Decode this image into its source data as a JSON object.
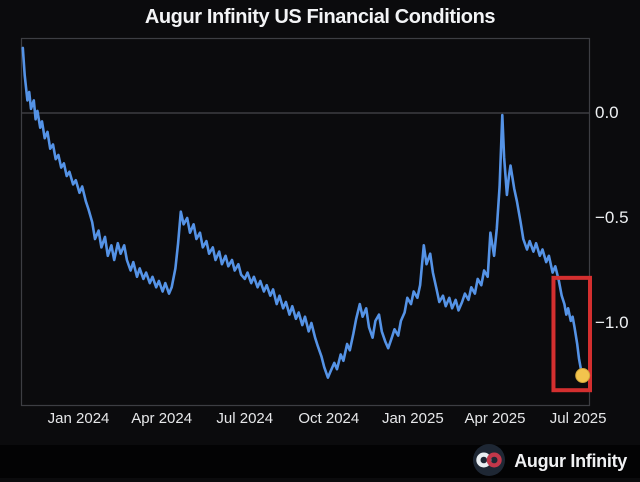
{
  "title": "Augur Infinity US Financial Conditions",
  "branding": {
    "logo_text": "Augur Infinity",
    "logo_icon": "infinity-icon",
    "logo_circle_color": "#1e2734",
    "logo_left_loop_color": "#e9eef2",
    "logo_right_loop_color": "#c2374a"
  },
  "colors": {
    "background": "#0b0b0d",
    "footer_background": "#030304",
    "plot_border": "#3d3e43",
    "zero_gridline": "#46474c",
    "line": "#5593e6",
    "text": "#eceded",
    "highlight_box": "#d42f2f",
    "end_dot": "#f3c44d"
  },
  "chart_data": {
    "type": "line",
    "title": "Augur Infinity US Financial Conditions",
    "xlabel": "",
    "ylabel": "",
    "legend": "none",
    "grid": "single horizontal gridline at 0.0 only",
    "x_range": [
      "2023-10-30",
      "2025-07-14"
    ],
    "ylim": [
      -1.395,
      0.357
    ],
    "y_ticks": [
      {
        "label": "0.0",
        "value": 0.0
      },
      {
        "label": "−0.5",
        "value": -0.5
      },
      {
        "label": "−1.0",
        "value": -1.0
      }
    ],
    "x_ticks": [
      {
        "label": "Jan 2024",
        "date": "2024-01-01"
      },
      {
        "label": "Apr 2024",
        "date": "2024-04-01"
      },
      {
        "label": "Jul 2024",
        "date": "2024-07-01"
      },
      {
        "label": "Oct 2024",
        "date": "2024-10-01"
      },
      {
        "label": "Jan 2025",
        "date": "2025-01-01"
      },
      {
        "label": "Apr 2025",
        "date": "2025-04-01"
      },
      {
        "label": "Jul 2025",
        "date": "2025-07-01"
      }
    ],
    "highlight_box": {
      "x1": "2025-06-04",
      "x2": "2025-07-14",
      "v1": -0.785,
      "v2": -1.32,
      "color": "#d42f2f"
    },
    "end_dot": {
      "date": "2025-07-06",
      "value": -1.25,
      "color": "#f3c44d"
    },
    "series": [
      {
        "name": "US Financial Conditions",
        "color": "#5593e6",
        "points": [
          [
            "2023-11-01",
            0.31
          ],
          [
            "2023-11-03",
            0.18
          ],
          [
            "2023-11-06",
            0.06
          ],
          [
            "2023-11-08",
            0.1
          ],
          [
            "2023-11-10",
            0.02
          ],
          [
            "2023-11-13",
            0.06
          ],
          [
            "2023-11-15",
            -0.03
          ],
          [
            "2023-11-17",
            0.01
          ],
          [
            "2023-11-20",
            -0.07
          ],
          [
            "2023-11-22",
            -0.04
          ],
          [
            "2023-11-25",
            -0.12
          ],
          [
            "2023-11-28",
            -0.09
          ],
          [
            "2023-12-01",
            -0.17
          ],
          [
            "2023-12-04",
            -0.15
          ],
          [
            "2023-12-07",
            -0.22
          ],
          [
            "2023-12-10",
            -0.2
          ],
          [
            "2023-12-13",
            -0.26
          ],
          [
            "2023-12-16",
            -0.24
          ],
          [
            "2023-12-19",
            -0.3
          ],
          [
            "2023-12-22",
            -0.28
          ],
          [
            "2023-12-26",
            -0.34
          ],
          [
            "2023-12-29",
            -0.32
          ],
          [
            "2024-01-02",
            -0.38
          ],
          [
            "2024-01-05",
            -0.35
          ],
          [
            "2024-01-09",
            -0.42
          ],
          [
            "2024-01-12",
            -0.46
          ],
          [
            "2024-01-16",
            -0.52
          ],
          [
            "2024-01-19",
            -0.6
          ],
          [
            "2024-01-23",
            -0.56
          ],
          [
            "2024-01-26",
            -0.64
          ],
          [
            "2024-01-30",
            -0.59
          ],
          [
            "2024-02-02",
            -0.68
          ],
          [
            "2024-02-06",
            -0.63
          ],
          [
            "2024-02-09",
            -0.7
          ],
          [
            "2024-02-13",
            -0.62
          ],
          [
            "2024-02-16",
            -0.67
          ],
          [
            "2024-02-20",
            -0.63
          ],
          [
            "2024-02-23",
            -0.7
          ],
          [
            "2024-02-27",
            -0.75
          ],
          [
            "2024-03-01",
            -0.71
          ],
          [
            "2024-03-05",
            -0.78
          ],
          [
            "2024-03-08",
            -0.74
          ],
          [
            "2024-03-12",
            -0.79
          ],
          [
            "2024-03-15",
            -0.76
          ],
          [
            "2024-03-19",
            -0.81
          ],
          [
            "2024-03-22",
            -0.78
          ],
          [
            "2024-03-26",
            -0.83
          ],
          [
            "2024-03-29",
            -0.8
          ],
          [
            "2024-04-02",
            -0.85
          ],
          [
            "2024-04-05",
            -0.81
          ],
          [
            "2024-04-09",
            -0.86
          ],
          [
            "2024-04-12",
            -0.83
          ],
          [
            "2024-04-16",
            -0.74
          ],
          [
            "2024-04-19",
            -0.62
          ],
          [
            "2024-04-22",
            -0.47
          ],
          [
            "2024-04-25",
            -0.53
          ],
          [
            "2024-04-29",
            -0.5
          ],
          [
            "2024-05-02",
            -0.57
          ],
          [
            "2024-05-06",
            -0.53
          ],
          [
            "2024-05-09",
            -0.6
          ],
          [
            "2024-05-13",
            -0.57
          ],
          [
            "2024-05-16",
            -0.64
          ],
          [
            "2024-05-20",
            -0.61
          ],
          [
            "2024-05-23",
            -0.67
          ],
          [
            "2024-05-27",
            -0.64
          ],
          [
            "2024-05-30",
            -0.7
          ],
          [
            "2024-06-03",
            -0.66
          ],
          [
            "2024-06-06",
            -0.72
          ],
          [
            "2024-06-10",
            -0.68
          ],
          [
            "2024-06-13",
            -0.73
          ],
          [
            "2024-06-17",
            -0.7
          ],
          [
            "2024-06-20",
            -0.75
          ],
          [
            "2024-06-24",
            -0.72
          ],
          [
            "2024-06-27",
            -0.77
          ],
          [
            "2024-07-01",
            -0.79
          ],
          [
            "2024-07-04",
            -0.76
          ],
          [
            "2024-07-08",
            -0.81
          ],
          [
            "2024-07-11",
            -0.78
          ],
          [
            "2024-07-15",
            -0.83
          ],
          [
            "2024-07-18",
            -0.8
          ],
          [
            "2024-07-22",
            -0.85
          ],
          [
            "2024-07-25",
            -0.82
          ],
          [
            "2024-07-29",
            -0.87
          ],
          [
            "2024-08-01",
            -0.84
          ],
          [
            "2024-08-05",
            -0.91
          ],
          [
            "2024-08-08",
            -0.87
          ],
          [
            "2024-08-12",
            -0.93
          ],
          [
            "2024-08-15",
            -0.9
          ],
          [
            "2024-08-19",
            -0.96
          ],
          [
            "2024-08-22",
            -0.92
          ],
          [
            "2024-08-26",
            -0.98
          ],
          [
            "2024-08-29",
            -0.95
          ],
          [
            "2024-09-02",
            -1.01
          ],
          [
            "2024-09-05",
            -0.97
          ],
          [
            "2024-09-09",
            -1.04
          ],
          [
            "2024-09-12",
            -1.0
          ],
          [
            "2024-09-16",
            -1.07
          ],
          [
            "2024-09-19",
            -1.11
          ],
          [
            "2024-09-23",
            -1.16
          ],
          [
            "2024-09-26",
            -1.21
          ],
          [
            "2024-09-30",
            -1.26
          ],
          [
            "2024-10-03",
            -1.23
          ],
          [
            "2024-10-07",
            -1.19
          ],
          [
            "2024-10-10",
            -1.22
          ],
          [
            "2024-10-14",
            -1.15
          ],
          [
            "2024-10-17",
            -1.18
          ],
          [
            "2024-10-21",
            -1.1
          ],
          [
            "2024-10-24",
            -1.13
          ],
          [
            "2024-10-28",
            -1.05
          ],
          [
            "2024-10-31",
            -0.98
          ],
          [
            "2024-11-04",
            -0.91
          ],
          [
            "2024-11-07",
            -0.97
          ],
          [
            "2024-11-11",
            -0.93
          ],
          [
            "2024-11-14",
            -1.02
          ],
          [
            "2024-11-18",
            -1.07
          ],
          [
            "2024-11-21",
            -0.99
          ],
          [
            "2024-11-25",
            -0.96
          ],
          [
            "2024-11-28",
            -1.04
          ],
          [
            "2024-12-02",
            -1.09
          ],
          [
            "2024-12-05",
            -1.12
          ],
          [
            "2024-12-09",
            -1.07
          ],
          [
            "2024-12-12",
            -1.03
          ],
          [
            "2024-12-16",
            -1.06
          ],
          [
            "2024-12-19",
            -0.99
          ],
          [
            "2024-12-23",
            -0.95
          ],
          [
            "2024-12-26",
            -0.88
          ],
          [
            "2024-12-30",
            -0.91
          ],
          [
            "2025-01-02",
            -0.85
          ],
          [
            "2025-01-06",
            -0.88
          ],
          [
            "2025-01-09",
            -0.82
          ],
          [
            "2025-01-13",
            -0.63
          ],
          [
            "2025-01-16",
            -0.72
          ],
          [
            "2025-01-20",
            -0.67
          ],
          [
            "2025-01-23",
            -0.76
          ],
          [
            "2025-01-27",
            -0.84
          ],
          [
            "2025-01-30",
            -0.9
          ],
          [
            "2025-02-03",
            -0.87
          ],
          [
            "2025-02-06",
            -0.92
          ],
          [
            "2025-02-10",
            -0.88
          ],
          [
            "2025-02-13",
            -0.93
          ],
          [
            "2025-02-17",
            -0.89
          ],
          [
            "2025-02-20",
            -0.94
          ],
          [
            "2025-02-24",
            -0.9
          ],
          [
            "2025-02-27",
            -0.86
          ],
          [
            "2025-03-03",
            -0.89
          ],
          [
            "2025-03-06",
            -0.83
          ],
          [
            "2025-03-10",
            -0.86
          ],
          [
            "2025-03-13",
            -0.79
          ],
          [
            "2025-03-17",
            -0.82
          ],
          [
            "2025-03-20",
            -0.75
          ],
          [
            "2025-03-24",
            -0.78
          ],
          [
            "2025-03-27",
            -0.57
          ],
          [
            "2025-03-31",
            -0.68
          ],
          [
            "2025-04-03",
            -0.55
          ],
          [
            "2025-04-06",
            -0.35
          ],
          [
            "2025-04-09",
            -0.01
          ],
          [
            "2025-04-11",
            -0.21
          ],
          [
            "2025-04-14",
            -0.39
          ],
          [
            "2025-04-16",
            -0.31
          ],
          [
            "2025-04-18",
            -0.25
          ],
          [
            "2025-04-22",
            -0.36
          ],
          [
            "2025-04-25",
            -0.42
          ],
          [
            "2025-04-29",
            -0.52
          ],
          [
            "2025-05-02",
            -0.6
          ],
          [
            "2025-05-06",
            -0.65
          ],
          [
            "2025-05-09",
            -0.61
          ],
          [
            "2025-05-13",
            -0.66
          ],
          [
            "2025-05-16",
            -0.62
          ],
          [
            "2025-05-20",
            -0.68
          ],
          [
            "2025-05-23",
            -0.65
          ],
          [
            "2025-05-27",
            -0.71
          ],
          [
            "2025-05-30",
            -0.68
          ],
          [
            "2025-06-03",
            -0.76
          ],
          [
            "2025-06-06",
            -0.73
          ],
          [
            "2025-06-10",
            -0.8
          ],
          [
            "2025-06-13",
            -0.87
          ],
          [
            "2025-06-16",
            -0.91
          ],
          [
            "2025-06-18",
            -0.96
          ],
          [
            "2025-06-20",
            -0.93
          ],
          [
            "2025-06-23",
            -0.99
          ],
          [
            "2025-06-25",
            -0.97
          ],
          [
            "2025-06-27",
            -1.02
          ],
          [
            "2025-06-30",
            -1.1
          ],
          [
            "2025-07-02",
            -1.17
          ],
          [
            "2025-07-04",
            -1.22
          ],
          [
            "2025-07-06",
            -1.25
          ]
        ]
      }
    ]
  }
}
